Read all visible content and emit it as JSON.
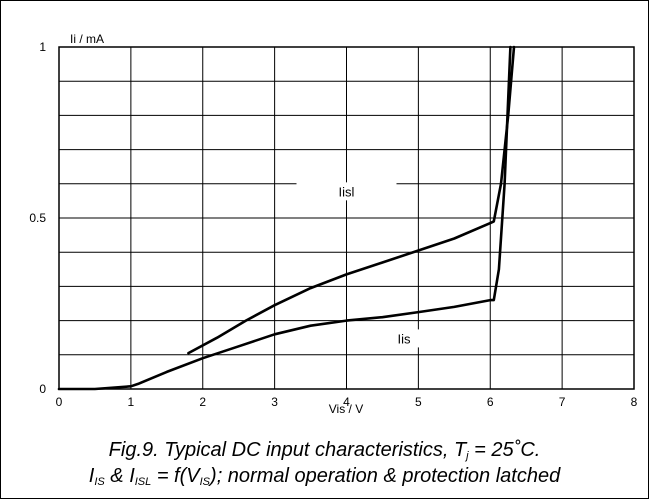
{
  "chart_data": {
    "type": "line",
    "ylabel": "Ii / mA",
    "xlabel": "Vis / V",
    "xlim": [
      0,
      8
    ],
    "ylim": [
      0,
      1
    ],
    "x_ticks": [
      0,
      1,
      2,
      3,
      4,
      5,
      6,
      7,
      8
    ],
    "y_tick_labels": [
      {
        "value": 0,
        "label": "0"
      },
      {
        "value": 0.5,
        "label": "0.5"
      },
      {
        "value": 1,
        "label": "1"
      }
    ],
    "grid": true,
    "series": [
      {
        "name": "Iisl",
        "points": [
          [
            1.8,
            0.105
          ],
          [
            2.2,
            0.15
          ],
          [
            2.6,
            0.2
          ],
          [
            3.0,
            0.245
          ],
          [
            3.5,
            0.295
          ],
          [
            4.0,
            0.335
          ],
          [
            4.5,
            0.37
          ],
          [
            5.0,
            0.405
          ],
          [
            5.5,
            0.44
          ],
          [
            6.0,
            0.485
          ],
          [
            6.05,
            0.49
          ],
          [
            6.15,
            0.6
          ],
          [
            6.25,
            0.8
          ],
          [
            6.33,
            1.0
          ]
        ]
      },
      {
        "name": "Iis",
        "points": [
          [
            0.0,
            0.0
          ],
          [
            0.5,
            0.0
          ],
          [
            1.0,
            0.008
          ],
          [
            1.1,
            0.015
          ],
          [
            1.5,
            0.05
          ],
          [
            2.0,
            0.09
          ],
          [
            2.5,
            0.125
          ],
          [
            3.0,
            0.16
          ],
          [
            3.5,
            0.185
          ],
          [
            4.0,
            0.2
          ],
          [
            4.5,
            0.21
          ],
          [
            5.0,
            0.225
          ],
          [
            5.5,
            0.24
          ],
          [
            6.0,
            0.26
          ],
          [
            6.05,
            0.26
          ],
          [
            6.12,
            0.35
          ],
          [
            6.2,
            0.6
          ],
          [
            6.28,
            1.0
          ]
        ]
      }
    ],
    "caption": {
      "line1": "Fig.9.   Typical DC input characteristics, T",
      "line1_sub": "j",
      "line1_end": " = 25˚C.",
      "line2_parts": [
        {
          "t": "I"
        },
        {
          "sub": "IS"
        },
        {
          "t": " & I"
        },
        {
          "sub": "ISL"
        },
        {
          "t": " = f(V"
        },
        {
          "sub": "IS"
        },
        {
          "t": "); normal operation & protection latched"
        }
      ]
    }
  }
}
